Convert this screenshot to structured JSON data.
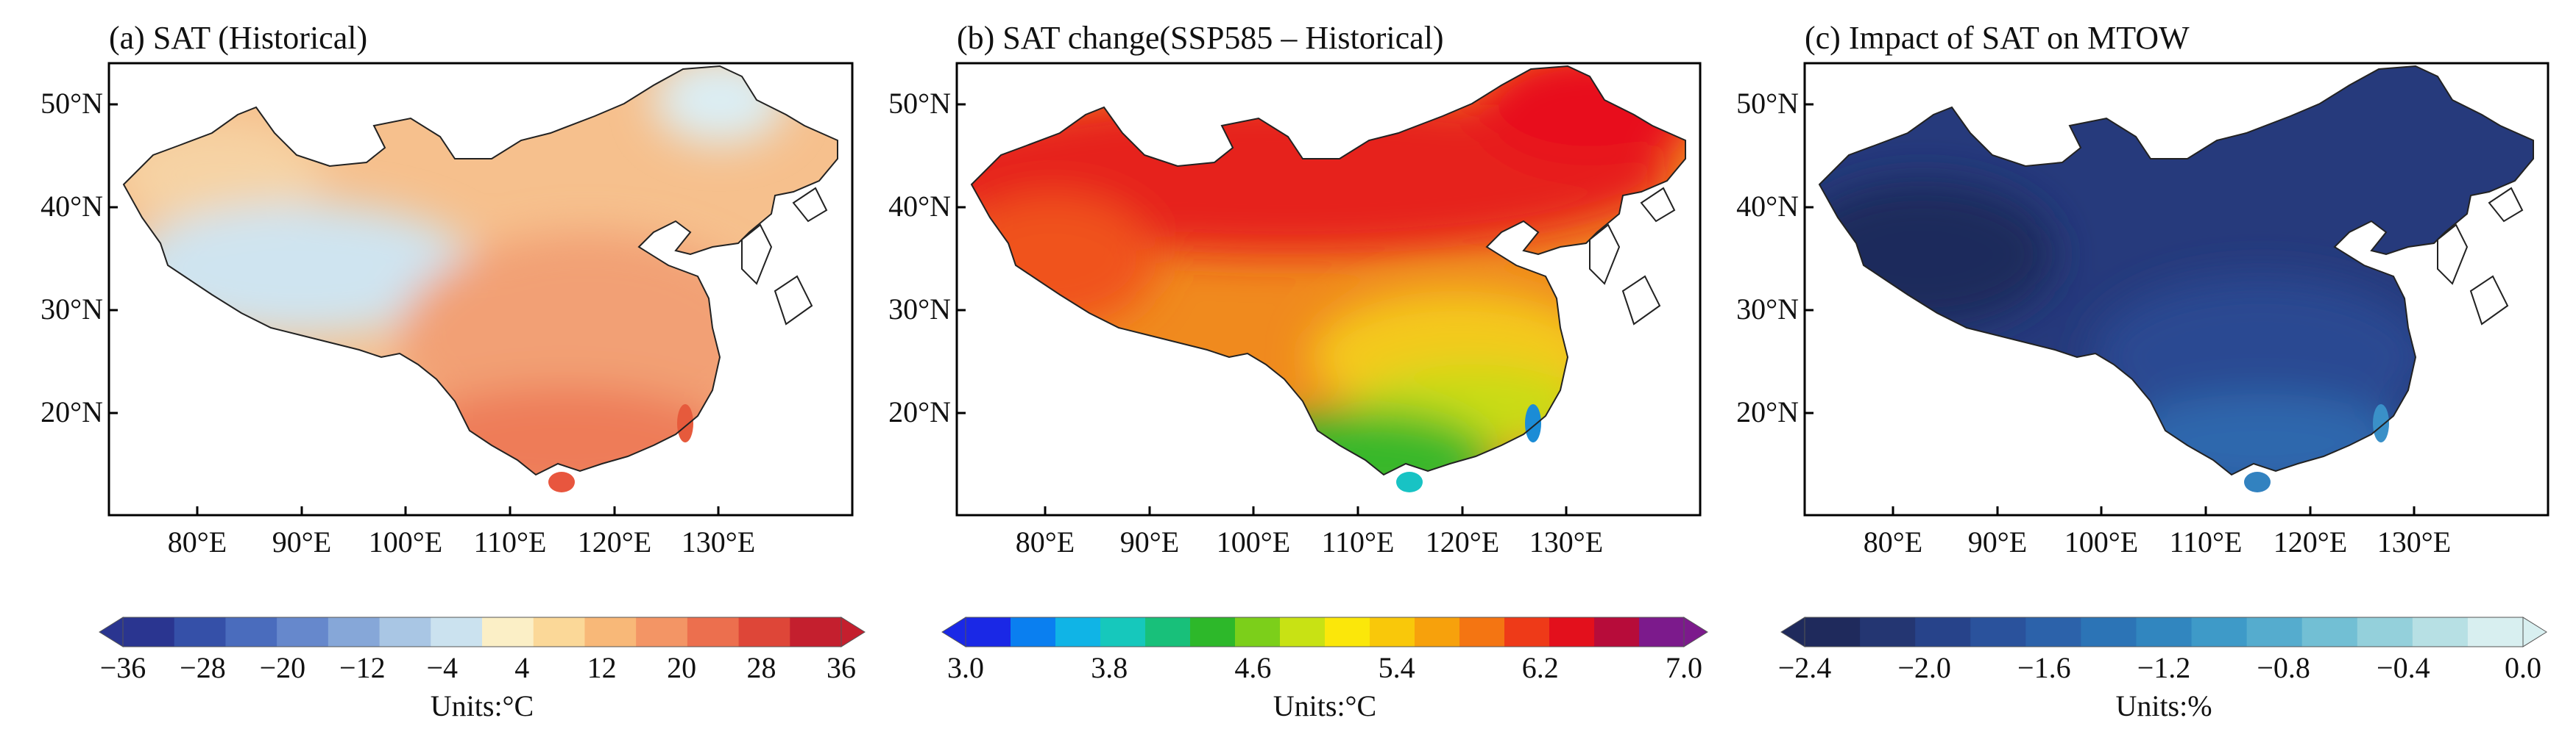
{
  "panels": [
    {
      "id": "a",
      "title": "(a) SAT (Historical)",
      "lat_labels": [
        "50°N",
        "40°N",
        "30°N",
        "20°N"
      ],
      "lon_labels": [
        "80°E",
        "90°E",
        "100°E",
        "110°E",
        "120°E",
        "130°E"
      ],
      "colorbar": {
        "ticks": [
          "-36",
          "-28",
          "-20",
          "-12",
          "-4",
          "4",
          "12",
          "20",
          "28",
          "36"
        ],
        "units": "Units:°C",
        "colors": [
          "#2a3590",
          "#3550a8",
          "#4a6cbd",
          "#6688cc",
          "#86a7d8",
          "#a9c6e4",
          "#cbe2ef",
          "#fbefc6",
          "#fbd898",
          "#f8b878",
          "#f39565",
          "#ec6f4e",
          "#de4638",
          "#c41f2e"
        ]
      },
      "map_fill": {
        "west_plateau": "#cfe4f0",
        "northwest": "#f6d3a4",
        "interior": "#f6c08d",
        "east": "#f2a074",
        "south": "#ee7c58",
        "hainan": "#e8563e",
        "taiwan": "#e65a3c",
        "northeast_tip": "#dbeef4"
      }
    },
    {
      "id": "b",
      "title": "(b) SAT change(SSP585 – Historical)",
      "lat_labels": [
        "50°N",
        "40°N",
        "30°N",
        "20°N"
      ],
      "lon_labels": [
        "80°E",
        "90°E",
        "100°E",
        "110°E",
        "120°E",
        "130°E"
      ],
      "colorbar": {
        "ticks": [
          "3.0",
          "3.8",
          "4.6",
          "5.4",
          "6.2",
          "7.0"
        ],
        "units": "Units:°C",
        "colors": [
          "#1a28e6",
          "#0a7ff0",
          "#10b4e6",
          "#16c8bc",
          "#18c07a",
          "#2db82a",
          "#7ccf1a",
          "#c8e214",
          "#fbe70a",
          "#f9c80a",
          "#f7a10c",
          "#f47512",
          "#ee3a18",
          "#e3101c",
          "#b70c3a",
          "#7c1a8c"
        ]
      },
      "map_fill": {
        "north": "#e6201a",
        "central": "#f08a1e",
        "plateau": "#f0521c",
        "east": "#f4c91a",
        "southeast": "#c9dc18",
        "south": "#39b82a",
        "hainan": "#18c3c4",
        "taiwan": "#1b8cd6",
        "northeast": "#e8101c"
      }
    },
    {
      "id": "c",
      "title": "(c) Impact of SAT on MTOW",
      "lat_labels": [
        "50°N",
        "40°N",
        "30°N",
        "20°N"
      ],
      "lon_labels": [
        "80°E",
        "90°E",
        "100°E",
        "110°E",
        "120°E",
        "130°E"
      ],
      "colorbar": {
        "ticks": [
          "-2.4",
          "-2.0",
          "-1.6",
          "-1.2",
          "-0.8",
          "-0.4",
          "0.0"
        ],
        "units": "Units:%",
        "colors": [
          "#1f2a5c",
          "#243672",
          "#27438a",
          "#2a529c",
          "#2c62aa",
          "#2c74b6",
          "#3186bf",
          "#3e9ac8",
          "#55acce",
          "#72bfd4",
          "#94d0db",
          "#b7e0e4",
          "#d8eff0"
        ]
      },
      "map_fill": {
        "north": "#263a7c",
        "west": "#1f2a5c",
        "central": "#2a4a92",
        "south": "#2d67ad",
        "hainan": "#3282c0",
        "taiwan": "#3a90c8"
      }
    }
  ]
}
